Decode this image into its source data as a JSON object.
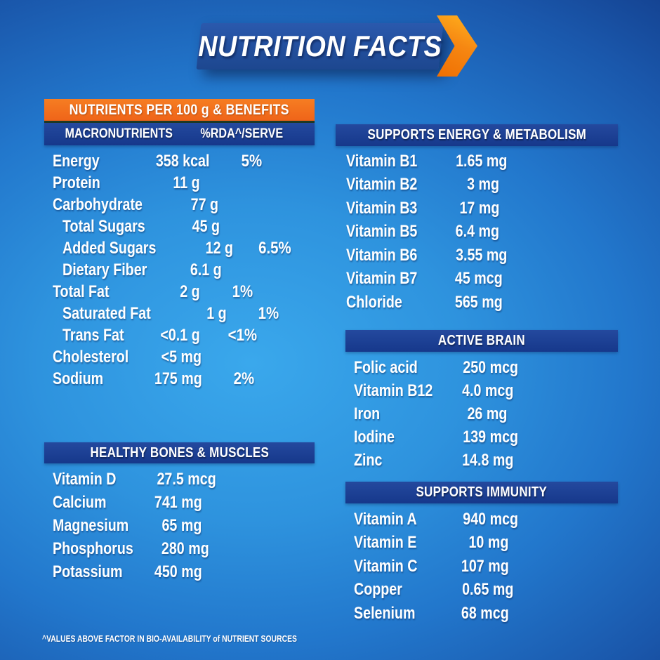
{
  "banner": {
    "title": "NUTRITION FACTS"
  },
  "left_panel": {
    "orange_header": "NUTRIENTS PER 100 g & BENEFITS",
    "macro_table": {
      "col1_header": "MACRONUTRIENTS",
      "col2_header": "%RDA^/SERVE",
      "rows": [
        {
          "label": "Energy",
          "value": "358 kcal",
          "rda": "5%"
        },
        {
          "label": "Protein",
          "value": "11 g",
          "rda": ""
        },
        {
          "label": "Carbohydrate",
          "value": "77 g",
          "rda": ""
        },
        {
          "label": "Total Sugars",
          "value": "45 g",
          "rda": ""
        },
        {
          "label": "Added Sugars",
          "value": "12 g",
          "rda": "6.5%"
        },
        {
          "label": "Dietary Fiber",
          "value": "6.1 g",
          "rda": ""
        },
        {
          "label": "Total Fat",
          "value": "2 g",
          "rda": "1%"
        },
        {
          "label": "Saturated Fat",
          "value": "1 g",
          "rda": "1%"
        },
        {
          "label": "Trans Fat",
          "value": "<0.1 g",
          "rda": "<1%"
        },
        {
          "label": "Cholesterol",
          "value": "<5 mg",
          "rda": ""
        },
        {
          "label": "Sodium",
          "value": "175 mg",
          "rda": "2%"
        }
      ]
    },
    "bones_section": {
      "header": "HEALTHY BONES & MUSCLES",
      "rows": [
        {
          "label": "Vitamin D",
          "value": "27.5 mcg"
        },
        {
          "label": "Calcium",
          "value": "741 mg"
        },
        {
          "label": "Magnesium",
          "value": "65 mg"
        },
        {
          "label": "Phosphorus",
          "value": "280 mg"
        },
        {
          "label": "Potassium",
          "value": "450 mg"
        }
      ]
    }
  },
  "right_panel": {
    "energy_section": {
      "header": "SUPPORTS ENERGY & METABOLISM",
      "rows": [
        {
          "label": "Vitamin B1",
          "value": "1.65 mg"
        },
        {
          "label": "Vitamin B2",
          "value": "3 mg"
        },
        {
          "label": "Vitamin B3",
          "value": "17 mg"
        },
        {
          "label": "Vitamin B5",
          "value": "6.4 mg"
        },
        {
          "label": "Vitamin B6",
          "value": "3.55 mg"
        },
        {
          "label": "Vitamin B7",
          "value": "45 mcg"
        },
        {
          "label": "Chloride",
          "value": "565 mg"
        }
      ]
    },
    "brain_section": {
      "header": "ACTIVE BRAIN",
      "rows": [
        {
          "label": "Folic acid",
          "value": "250 mcg"
        },
        {
          "label": "Vitamin B12",
          "value": "4.0 mcg"
        },
        {
          "label": "Iron",
          "value": "26 mg"
        },
        {
          "label": "Iodine",
          "value": "139 mcg"
        },
        {
          "label": "Zinc",
          "value": "14.8 mg"
        }
      ]
    },
    "immunity_section": {
      "header": "SUPPORTS IMMUNITY",
      "rows": [
        {
          "label": "Vitamin A",
          "value": "940 mcg"
        },
        {
          "label": "Vitamin E",
          "value": "10 mg"
        },
        {
          "label": "Vitamin C",
          "value": "107 mg"
        },
        {
          "label": "Copper",
          "value": "0.65 mg"
        },
        {
          "label": "Selenium",
          "value": "68 mcg"
        }
      ]
    }
  },
  "footnote": "^VALUES ABOVE FACTOR IN BIO-AVAILABILITY of NUTRIENT SOURCES",
  "colors": {
    "background_center": "#38a6ea",
    "background_edge": "#0f2d72",
    "banner_blue": "#1f4c9e",
    "section_bar_blue": "#1c3f97",
    "orange": "#f26f1f",
    "arrow_orange_light": "#ffb31e",
    "arrow_orange_dark": "#ef6f02",
    "text": "#ffffff"
  }
}
